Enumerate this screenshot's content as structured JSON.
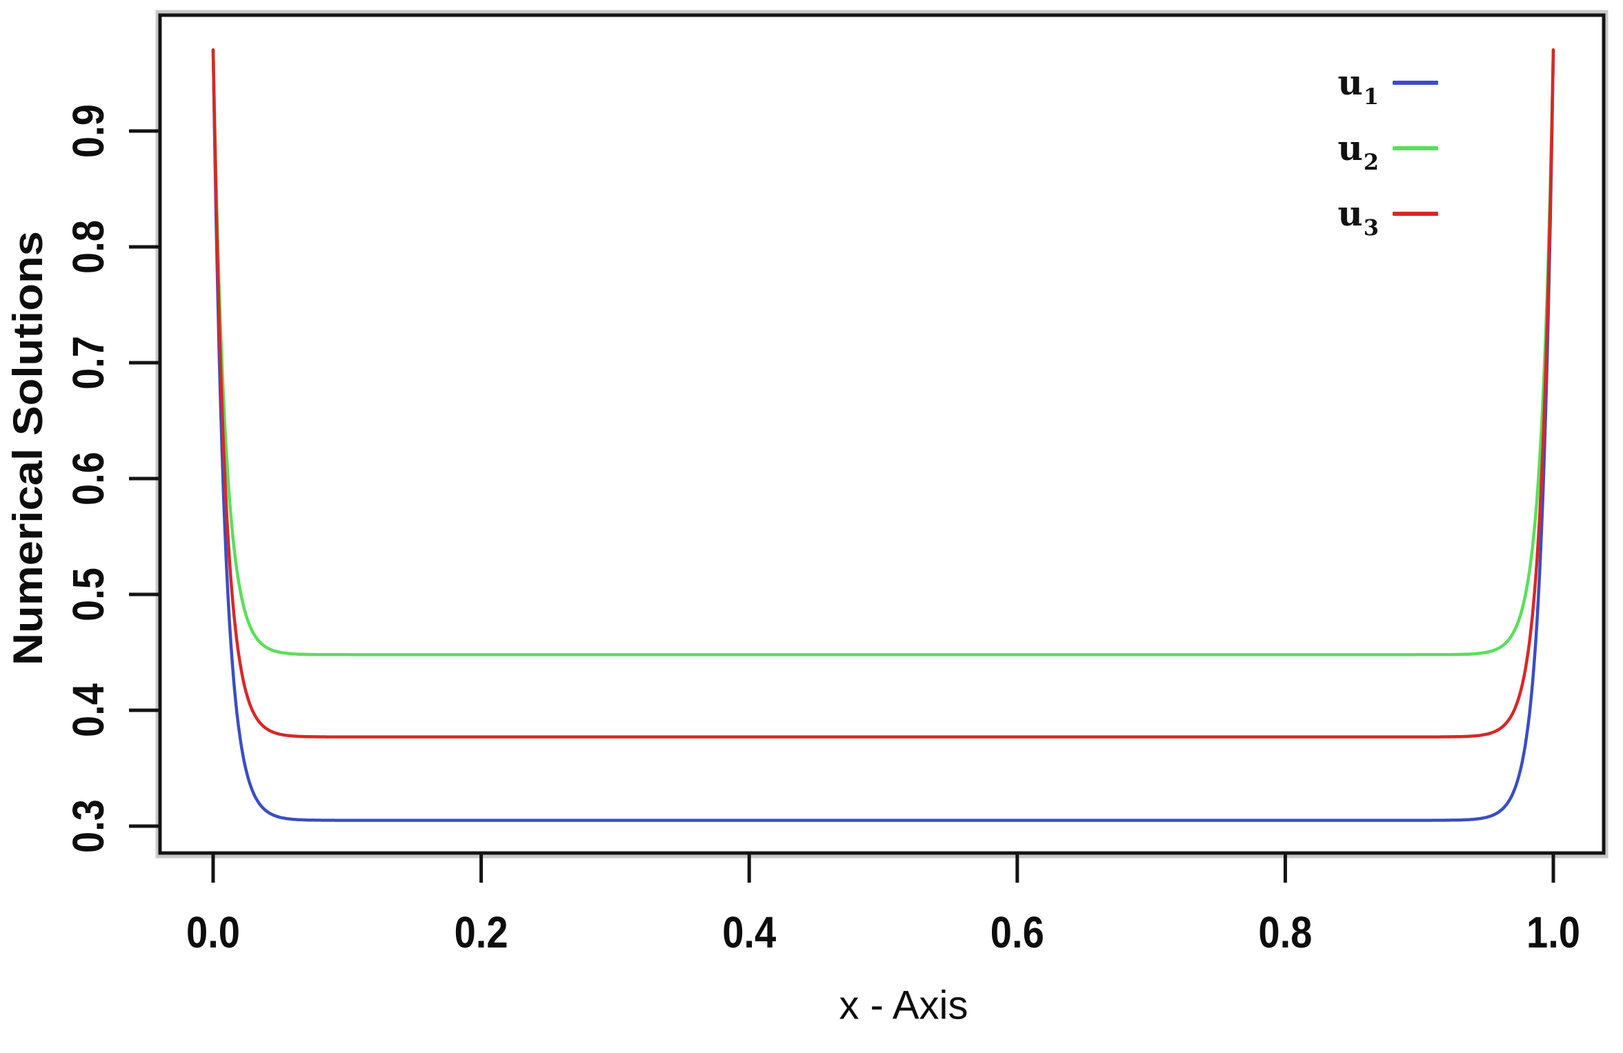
{
  "figure": {
    "background_color": "#ffffff",
    "axis_color": "#141414",
    "x_axis": {
      "label": "x - Axis",
      "tick_labels": [
        "0.0",
        "0.2",
        "0.4",
        "0.6",
        "0.8",
        "1.0"
      ],
      "tick_values": [
        0.0,
        0.2,
        0.4,
        0.6,
        0.8,
        1.0
      ]
    },
    "y_axis": {
      "label": "Numerical Solutions",
      "tick_labels": [
        "0.3",
        "0.4",
        "0.5",
        "0.6",
        "0.7",
        "0.8",
        "0.9"
      ],
      "tick_values": [
        0.3,
        0.4,
        0.5,
        0.6,
        0.7,
        0.8,
        0.9
      ]
    }
  },
  "legend": {
    "position": "top-right",
    "entries": [
      {
        "base": "u",
        "sub": "1",
        "color": "#3a4ec4"
      },
      {
        "base": "u",
        "sub": "2",
        "color": "#58e058"
      },
      {
        "base": "u",
        "sub": "3",
        "color": "#d92727"
      }
    ]
  },
  "chart_data": {
    "type": "line",
    "title": "",
    "xlabel": "x - Axis",
    "ylabel": "Numerical Solutions",
    "xlim": [
      -0.04,
      1.037
    ],
    "ylim": [
      0.277,
      1.0
    ],
    "x_ticks": [
      0.0,
      0.2,
      0.4,
      0.6,
      0.8,
      1.0
    ],
    "y_ticks": [
      0.3,
      0.4,
      0.5,
      0.6,
      0.7,
      0.8,
      0.9
    ],
    "grid": false,
    "legend_position": "top-right",
    "model": "u(x) = plateau + (boundary_value - plateau) * (exp(-x/w) + exp(-(1-x)/w)); boundary-layer profiles, symmetric about x = 0.5",
    "x_samples": [
      0,
      0.005,
      0.01,
      0.02,
      0.03,
      0.05,
      0.1,
      0.2,
      0.3,
      0.4,
      0.5,
      0.6,
      0.7,
      0.8,
      0.9,
      0.95,
      0.97,
      0.98,
      0.99,
      0.995,
      1.0
    ],
    "series": [
      {
        "name": "u1",
        "color": "#3a4ec4",
        "plateau": 0.305,
        "boundary_value": 0.97,
        "boundary_layer_width": 0.009,
        "y_samples": [
          0.97,
          0.687,
          0.524,
          0.377,
          0.329,
          0.309,
          0.305,
          0.305,
          0.305,
          0.305,
          0.305,
          0.305,
          0.305,
          0.305,
          0.305,
          0.309,
          0.329,
          0.377,
          0.524,
          0.687,
          0.97
        ]
      },
      {
        "name": "u2",
        "color": "#58e058",
        "plateau": 0.448,
        "boundary_value": 0.97,
        "boundary_layer_width": 0.009,
        "y_samples": [
          0.97,
          0.748,
          0.62,
          0.505,
          0.467,
          0.45,
          0.448,
          0.448,
          0.448,
          0.448,
          0.448,
          0.448,
          0.448,
          0.448,
          0.448,
          0.45,
          0.467,
          0.505,
          0.62,
          0.748,
          0.97
        ]
      },
      {
        "name": "u3",
        "color": "#d92727",
        "plateau": 0.377,
        "boundary_value": 0.97,
        "boundary_layer_width": 0.009,
        "y_samples": [
          0.97,
          0.717,
          0.572,
          0.441,
          0.398,
          0.379,
          0.377,
          0.377,
          0.377,
          0.377,
          0.377,
          0.377,
          0.377,
          0.377,
          0.377,
          0.379,
          0.398,
          0.441,
          0.572,
          0.717,
          0.97
        ]
      }
    ]
  }
}
